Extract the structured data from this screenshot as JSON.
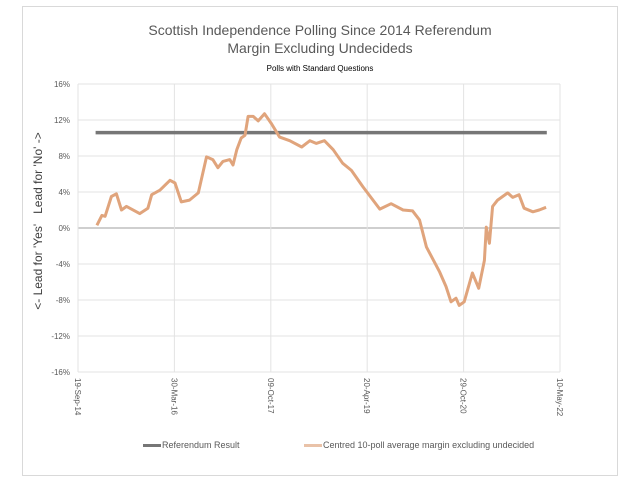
{
  "chart_data": {
    "type": "line",
    "title": "Scottish Independence Polling Since 2014 Referendum",
    "title_line2": "Margin Excluding Undecideds",
    "subtitle": "Polls with Standard Questions",
    "xlabel": "",
    "ylabel": "<- Lead for 'Yes'   Lead for 'No' ->",
    "x_units": "decimal year",
    "xlim": [
      2014.72,
      2022.37
    ],
    "ylim": [
      -16,
      16
    ],
    "y_ticks": [
      16,
      12,
      8,
      4,
      0,
      -4,
      -8,
      -12,
      -16
    ],
    "y_tick_labels": [
      "16%",
      "12%",
      "8%",
      "4%",
      "0%",
      "-4%",
      "-8%",
      "-12%",
      "-16%"
    ],
    "x_ticks": [
      2014.72,
      2016.25,
      2017.78,
      2019.31,
      2020.84,
      2022.37
    ],
    "x_tick_labels": [
      "19-Sep-14",
      "30-Mar-16",
      "09-Oct-17",
      "20-Apr-19",
      "29-Oct-20",
      "10-May-22"
    ],
    "grid": true,
    "legend_position": "bottom",
    "series": [
      {
        "name": "Referendum Result",
        "color": "#767676",
        "x": [
          2015.0,
          2022.16
        ],
        "y": [
          10.6,
          10.6
        ]
      },
      {
        "name": "Centred 10-poll average margin excluding undecided",
        "color": "#e0a47c",
        "x": [
          2015.02,
          2015.1,
          2015.15,
          2015.25,
          2015.33,
          2015.41,
          2015.49,
          2015.7,
          2015.83,
          2015.89,
          2016.02,
          2016.18,
          2016.26,
          2016.36,
          2016.49,
          2016.63,
          2016.76,
          2016.86,
          2016.94,
          2017.02,
          2017.13,
          2017.18,
          2017.24,
          2017.31,
          2017.37,
          2017.42,
          2017.5,
          2017.58,
          2017.68,
          2017.79,
          2017.92,
          2018.08,
          2018.27,
          2018.4,
          2018.5,
          2018.63,
          2018.77,
          2018.92,
          2019.06,
          2019.24,
          2019.51,
          2019.69,
          2019.88,
          2020.03,
          2020.14,
          2020.25,
          2020.46,
          2020.56,
          2020.64,
          2020.72,
          2020.77,
          2020.85,
          2020.98,
          2021.08,
          2021.17,
          2021.2,
          2021.25,
          2021.3,
          2021.38,
          2021.54,
          2021.62,
          2021.72,
          2021.8,
          2021.94,
          2022.04,
          2022.15
        ],
        "y": [
          0.3,
          1.4,
          1.3,
          3.5,
          3.8,
          2.0,
          2.4,
          1.6,
          2.2,
          3.7,
          4.2,
          5.3,
          5.0,
          2.9,
          3.1,
          3.9,
          7.9,
          7.6,
          6.7,
          7.4,
          7.6,
          7.0,
          8.7,
          10.0,
          10.3,
          12.4,
          12.4,
          11.9,
          12.7,
          11.6,
          10.1,
          9.7,
          9.0,
          9.7,
          9.4,
          9.7,
          8.7,
          7.2,
          6.4,
          4.6,
          2.1,
          2.7,
          2.0,
          1.9,
          0.9,
          -2.1,
          -4.9,
          -6.5,
          -8.2,
          -7.8,
          -8.6,
          -8.2,
          -5.0,
          -6.7,
          -3.6,
          0.1,
          -1.7,
          2.4,
          3.1,
          3.9,
          3.4,
          3.7,
          2.2,
          1.8,
          2.0,
          2.3
        ]
      }
    ]
  }
}
